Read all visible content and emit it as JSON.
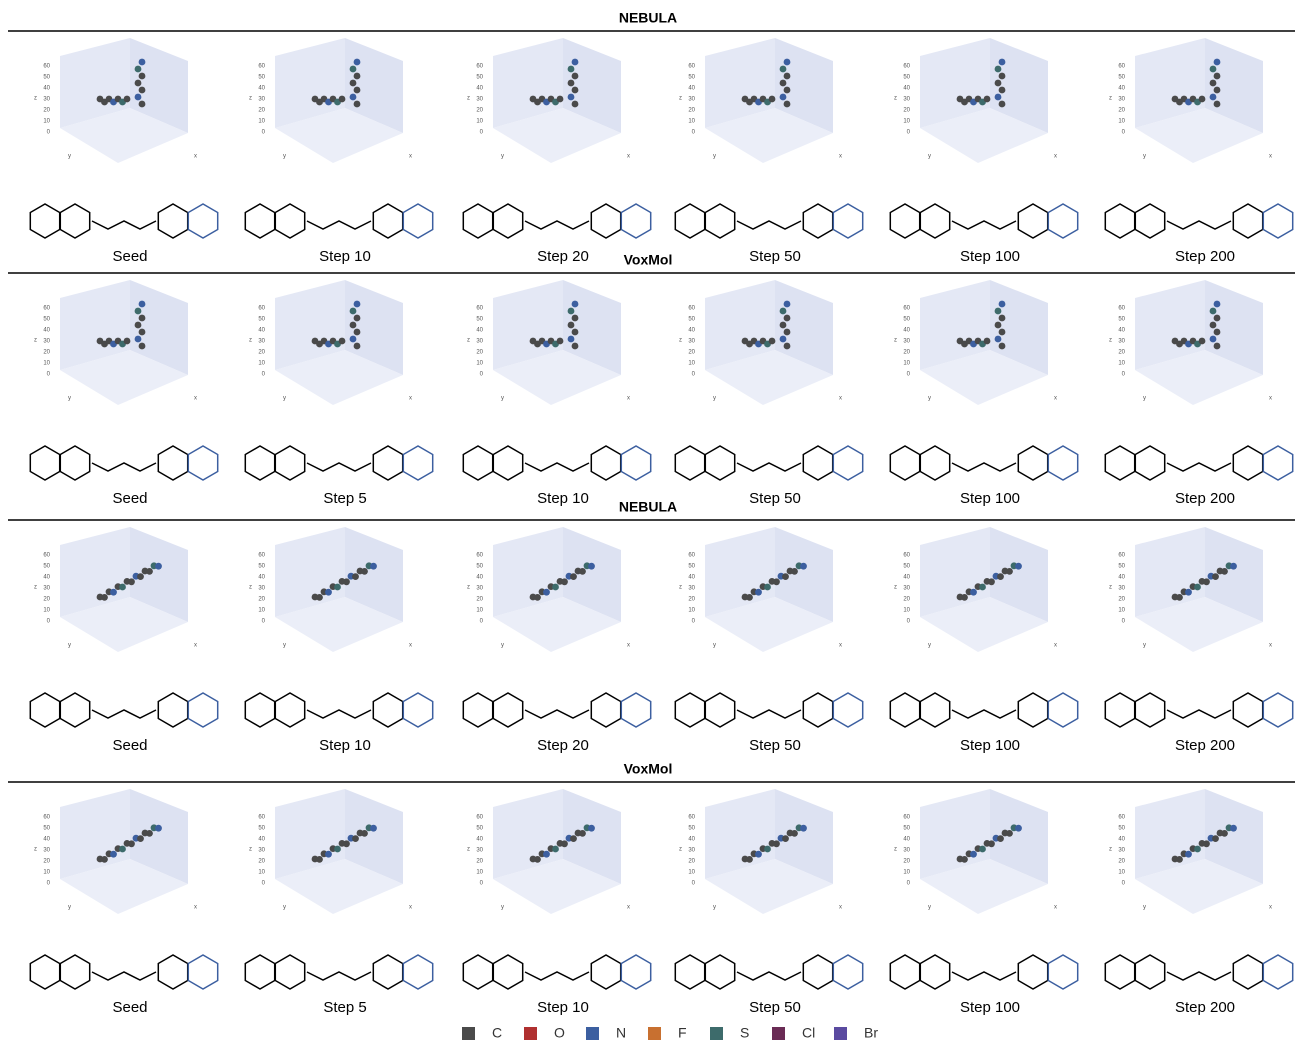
{
  "panels": [
    {
      "title": "NEBULA",
      "steps": [
        "Seed",
        "Step 10",
        "Step 20",
        "Step 50",
        "Step 100",
        "Step 200"
      ]
    },
    {
      "title": "VoxMol",
      "steps": [
        "Seed",
        "Step 5",
        "Step 10",
        "Step 50",
        "Step 100",
        "Step 200"
      ]
    },
    {
      "title": "NEBULA",
      "steps": [
        "Seed",
        "Step 10",
        "Step 20",
        "Step 50",
        "Step 100",
        "Step 200"
      ]
    },
    {
      "title": "VoxMol",
      "steps": [
        "Seed",
        "Step 5",
        "Step 10",
        "Step 50",
        "Step 100",
        "Step 200"
      ]
    }
  ],
  "axis": {
    "ticks": [
      "60",
      "50",
      "40",
      "30",
      "20",
      "10",
      "0"
    ],
    "labels": [
      "x",
      "y",
      "z"
    ]
  },
  "legend": [
    {
      "label": "C",
      "color": "#4a4a4a"
    },
    {
      "label": "O",
      "color": "#b03030"
    },
    {
      "label": "N",
      "color": "#3c5fa0"
    },
    {
      "label": "F",
      "color": "#c87030"
    },
    {
      "label": "S",
      "color": "#3d6b6b"
    },
    {
      "label": "Cl",
      "color": "#6a2b55"
    },
    {
      "label": "Br",
      "color": "#5a4aa0"
    }
  ]
}
